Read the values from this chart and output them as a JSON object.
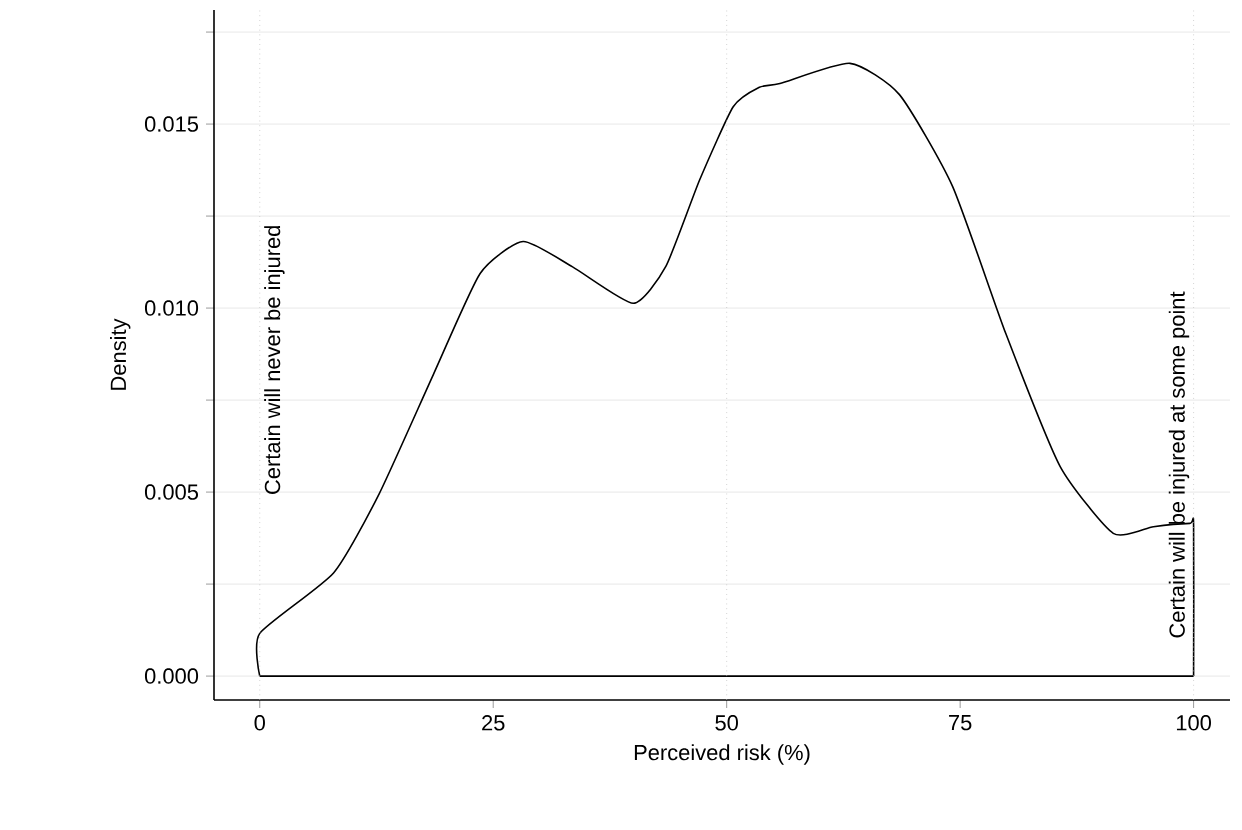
{
  "chart_data": {
    "type": "line",
    "xlabel": "Perceived risk (%)",
    "ylabel": "Density",
    "x": [
      0,
      0,
      7.9,
      12.8,
      18.6,
      23.6,
      28.2,
      33.5,
      40.0,
      43.5,
      47.1,
      50.7,
      53.5,
      55.7,
      63.2,
      68.5,
      74.2,
      79.9,
      85.7,
      91.4,
      95.7,
      99.6,
      100,
      100
    ],
    "series": [
      {
        "color": "#000000",
        "values": [
          0,
          0.00116,
          0.0028,
          0.00496,
          0.0082,
          0.01094,
          0.01181,
          0.01112,
          0.01013,
          0.01114,
          0.01348,
          0.01547,
          0.016,
          0.0161,
          0.01665,
          0.0158,
          0.0133,
          0.0093,
          0.0057,
          0.00388,
          0.00406,
          0.00415,
          0.0041,
          0
        ]
      }
    ],
    "xlim": [
      -4.9,
      103.9
    ],
    "ylim": [
      -0.00065,
      0.0181
    ],
    "xticks": [
      0,
      25,
      50,
      75,
      100
    ],
    "yticks": [
      {
        "value": 0,
        "label": "0.000"
      },
      {
        "value": 0.0025,
        "label": null
      },
      {
        "value": 0.005,
        "label": "0.005"
      },
      {
        "value": 0.0075,
        "label": null
      },
      {
        "value": 0.01,
        "label": "0.010"
      },
      {
        "value": 0.0125,
        "label": null
      },
      {
        "value": 0.015,
        "label": "0.015"
      },
      {
        "value": 0.0175,
        "label": null
      }
    ],
    "ref_lines": [
      {
        "axis": "y",
        "value": 0,
        "color": "#000000",
        "line_style": "solid"
      },
      {
        "axis": "x",
        "value": 0,
        "label": "Certain will never be injured",
        "color": "#bbbbbb",
        "line_style": "dotted"
      },
      {
        "axis": "x",
        "value": 50,
        "color": "#bbbbbb",
        "line_style": "dotted"
      },
      {
        "axis": "x",
        "value": 100,
        "label": "Certain will be injured at some point",
        "color": "#bbbbbb",
        "line_style": "dotted"
      }
    ],
    "grid": "y",
    "marker": "none",
    "line_style": "solid"
  }
}
